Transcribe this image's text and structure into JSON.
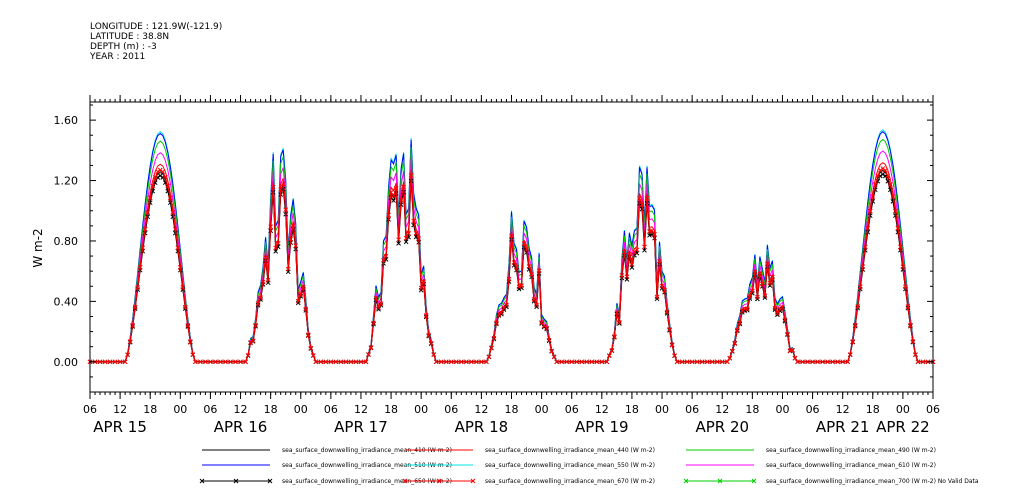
{
  "header": {
    "lines": [
      "LONGITUDE : 121.9W(-121.9)",
      "LATITUDE : 38.8N",
      "DEPTH (m) : -3",
      "YEAR : 2011"
    ]
  },
  "chart_data": {
    "type": "line",
    "ylabel": "W m-2",
    "ylim": [
      -0.2,
      1.72
    ],
    "yticks": [
      0.0,
      0.4,
      0.8,
      1.2,
      1.6
    ],
    "ytick_labels": [
      "0.00",
      "0.40",
      "0.80",
      "1.20",
      "1.60"
    ],
    "xlim_hours": [
      -18,
      150
    ],
    "hour_ticks": [
      {
        "h": -18,
        "label": "06"
      },
      {
        "h": -12,
        "label": "12"
      },
      {
        "h": -6,
        "label": "18"
      },
      {
        "h": 0,
        "label": "00"
      },
      {
        "h": 6,
        "label": "06"
      },
      {
        "h": 12,
        "label": "12"
      },
      {
        "h": 18,
        "label": "18"
      },
      {
        "h": 24,
        "label": "00"
      },
      {
        "h": 30,
        "label": "06"
      },
      {
        "h": 36,
        "label": "12"
      },
      {
        "h": 42,
        "label": "18"
      },
      {
        "h": 48,
        "label": "00"
      },
      {
        "h": 54,
        "label": "06"
      },
      {
        "h": 60,
        "label": "12"
      },
      {
        "h": 66,
        "label": "18"
      },
      {
        "h": 72,
        "label": "00"
      },
      {
        "h": 78,
        "label": "06"
      },
      {
        "h": 84,
        "label": "12"
      },
      {
        "h": 90,
        "label": "18"
      },
      {
        "h": 96,
        "label": "00"
      },
      {
        "h": 102,
        "label": "06"
      },
      {
        "h": 108,
        "label": "12"
      },
      {
        "h": 114,
        "label": "18"
      },
      {
        "h": 120,
        "label": "00"
      },
      {
        "h": 126,
        "label": "06"
      },
      {
        "h": 132,
        "label": "12"
      },
      {
        "h": 138,
        "label": "18"
      },
      {
        "h": 144,
        "label": "00"
      },
      {
        "h": 150,
        "label": "06"
      }
    ],
    "date_labels": [
      {
        "h": -12,
        "label": "APR 15"
      },
      {
        "h": 12,
        "label": "APR 16"
      },
      {
        "h": 36,
        "label": "APR 17"
      },
      {
        "h": 60,
        "label": "APR 18"
      },
      {
        "h": 84,
        "label": "APR 19"
      },
      {
        "h": 108,
        "label": "APR 20"
      },
      {
        "h": 132,
        "label": "APR 21"
      },
      {
        "h": 144,
        "label": "APR 22"
      }
    ],
    "days": [
      {
        "peak": 1.27,
        "cloudy": false
      },
      {
        "peak": 1.12,
        "cloudy": true
      },
      {
        "peak": 1.3,
        "cloudy": true
      },
      {
        "peak": 0.9,
        "cloudy": true
      },
      {
        "peak": 1.1,
        "cloudy": true
      },
      {
        "peak": 0.65,
        "cloudy": true
      },
      {
        "peak": 1.28,
        "cloudy": false
      }
    ],
    "series": [
      {
        "name": "sea_surface_downwelling_irradiance_mean_410 (W m-2)",
        "color": "#000000",
        "marker": "",
        "scale": 0.99
      },
      {
        "name": "sea_surface_downwelling_irradiance_mean_440 (W m-2)",
        "color": "#ff0000",
        "marker": "",
        "scale": 1.03
      },
      {
        "name": "sea_surface_downwelling_irradiance_mean_490 (W m-2)",
        "color": "#00cc00",
        "marker": "",
        "scale": 1.15
      },
      {
        "name": "sea_surface_downwelling_irradiance_mean_510 (W m-2)",
        "color": "#0000ff",
        "marker": "",
        "scale": 1.19
      },
      {
        "name": "sea_surface_downwelling_irradiance_mean_550 (W m-2)",
        "color": "#00e5e5",
        "marker": "",
        "scale": 1.2
      },
      {
        "name": "sea_surface_downwelling_irradiance_mean_610 (W m-2)",
        "color": "#ff00ff",
        "marker": "",
        "scale": 1.09
      },
      {
        "name": "sea_surface_downwelling_irradiance_mean_650 (W m-2)",
        "color": "#000000",
        "marker": "x",
        "scale": 0.97
      },
      {
        "name": "sea_surface_downwelling_irradiance_mean_670 (W m-2)",
        "color": "#ff0000",
        "marker": "x",
        "scale": 1.0
      },
      {
        "name": "sea_surface_downwelling_irradiance_mean_700 (W m-2) No Valid Data",
        "color": "#00cc00",
        "marker": "x",
        "scale": 0
      }
    ]
  }
}
